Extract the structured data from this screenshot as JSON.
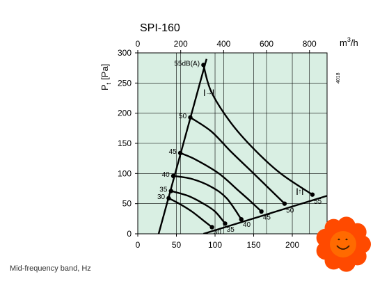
{
  "caption": "Mid-frequency band, Hz",
  "chart_data": {
    "type": "line",
    "title": "SPI-160",
    "code": "4018",
    "ylabel_main": "P",
    "ylabel_sub": "t",
    "ylabel_unit": "[Pa]",
    "top_unit_main": "m",
    "top_unit_sup": "3",
    "top_unit_tail": "/h",
    "xlim": [
      0,
      245
    ],
    "ylim": [
      0,
      300
    ],
    "x_ticks": [
      "0",
      "50",
      "100",
      "150",
      "200"
    ],
    "x_tick_values": [
      0,
      50,
      100,
      150,
      200
    ],
    "top_ticks": [
      "0",
      "200",
      "400",
      "600",
      "800"
    ],
    "top_tick_values_m3h": [
      0,
      200,
      400,
      600,
      800
    ],
    "y_ticks": [
      "300",
      "250",
      "200",
      "150",
      "100",
      "50",
      "0"
    ],
    "y_tick_values": [
      300,
      250,
      200,
      150,
      100,
      50,
      0
    ],
    "grid": true,
    "background": "#d9efe3",
    "line_color": "#000000",
    "axis_color": "#000000",
    "limit_lines": [
      {
        "points": [
          [
            27,
            0
          ],
          [
            89,
            290
          ]
        ]
      },
      {
        "points": [
          [
            85,
            0
          ],
          [
            245,
            63
          ]
        ]
      }
    ],
    "limit_markers": [
      {
        "text": "|→|",
        "x": 85,
        "y": 231
      },
      {
        "text": "|↑|",
        "x": 205,
        "y": 67
      }
    ],
    "series": [
      {
        "name": "55",
        "label": "55dB(A)",
        "values": [
          [
            85,
            280
          ],
          [
            95,
            236
          ],
          [
            120,
            185
          ],
          [
            150,
            141
          ],
          [
            185,
            100
          ],
          [
            226,
            65
          ]
        ]
      },
      {
        "name": "50",
        "label": "50",
        "values": [
          [
            68,
            193
          ],
          [
            95,
            170
          ],
          [
            120,
            137
          ],
          [
            150,
            100
          ],
          [
            170,
            75
          ],
          [
            190,
            50
          ]
        ]
      },
      {
        "name": "45",
        "label": "45",
        "values": [
          [
            55,
            134
          ],
          [
            75,
            123
          ],
          [
            105,
            100
          ],
          [
            130,
            72
          ],
          [
            145,
            55
          ],
          [
            160,
            37
          ]
        ]
      },
      {
        "name": "40",
        "label": "40",
        "values": [
          [
            46,
            96
          ],
          [
            70,
            91
          ],
          [
            95,
            78
          ],
          [
            115,
            59
          ],
          [
            134,
            24
          ]
        ]
      },
      {
        "name": "35",
        "label": "35",
        "values": [
          [
            43,
            71
          ],
          [
            65,
            63
          ],
          [
            85,
            50
          ],
          [
            100,
            37
          ],
          [
            113,
            17
          ]
        ]
      },
      {
        "name": "30",
        "label": "30",
        "values": [
          [
            40,
            59
          ],
          [
            55,
            49
          ],
          [
            70,
            37
          ],
          [
            85,
            22
          ],
          [
            96,
            11
          ]
        ]
      }
    ],
    "series_dots": [
      [
        [
          85,
          280
        ],
        [
          226,
          65
        ]
      ],
      [
        [
          68,
          193
        ],
        [
          190,
          50
        ]
      ],
      [
        [
          55,
          134
        ],
        [
          160,
          37
        ]
      ],
      [
        [
          46,
          96
        ],
        [
          134,
          24
        ]
      ],
      [
        [
          43,
          71
        ],
        [
          113,
          17
        ]
      ],
      [
        [
          40,
          59
        ],
        [
          96,
          11
        ]
      ]
    ],
    "left_labels": [
      {
        "text": "55dB(A)",
        "x": 82,
        "y": 282
      },
      {
        "text": "50",
        "x": 65,
        "y": 195
      },
      {
        "text": "45",
        "x": 52,
        "y": 136
      },
      {
        "text": "40",
        "x": 43,
        "y": 98
      },
      {
        "text": "35",
        "x": 40,
        "y": 73
      },
      {
        "text": "30",
        "x": 37,
        "y": 61
      }
    ],
    "right_labels": [
      {
        "text": "55",
        "x": 228,
        "y": 55
      },
      {
        "text": "50",
        "x": 192,
        "y": 40
      },
      {
        "text": "45",
        "x": 162,
        "y": 28
      },
      {
        "text": "40",
        "x": 136,
        "y": 16
      },
      {
        "text": "35",
        "x": 115,
        "y": 8
      },
      {
        "text": "30",
        "x": 98,
        "y": 4
      }
    ]
  }
}
